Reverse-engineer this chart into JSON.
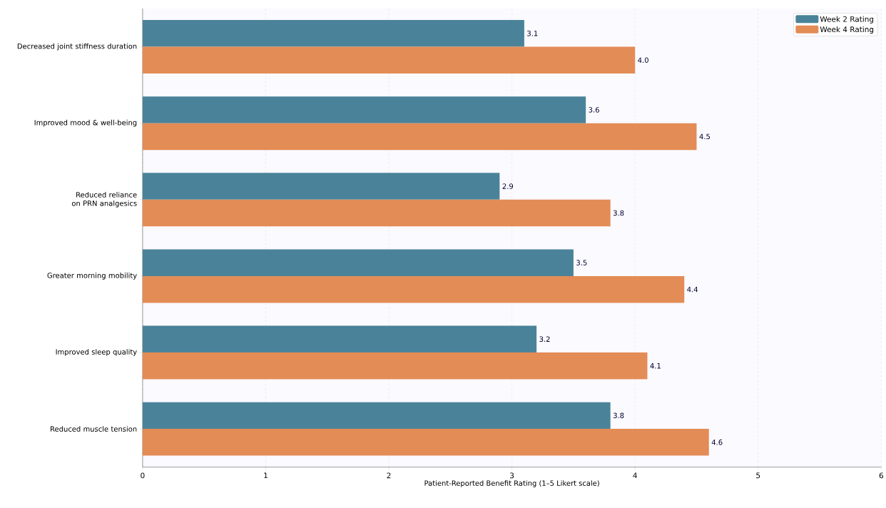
{
  "chart_data": {
    "type": "bar",
    "orientation": "horizontal",
    "xlabel": "Patient-Reported Benefit Rating (1–5 Likert scale)",
    "categories": [
      "Decreased joint stiffness duration",
      "Improved mood & well-being",
      "Reduced reliance on PRN analgesics",
      "Greater morning mobility",
      "Improved sleep quality",
      "Reduced muscle tension"
    ],
    "series": [
      {
        "name": "Week 2 Rating",
        "color": "#4a8399",
        "values": [
          3.1,
          3.6,
          2.9,
          3.5,
          3.2,
          3.8
        ],
        "value_labels": [
          "3.1",
          "3.6",
          "2.9",
          "3.5",
          "3.2",
          "3.8"
        ]
      },
      {
        "name": "Week 4 Rating",
        "color": "#e38c56",
        "values": [
          4.0,
          4.5,
          3.8,
          4.4,
          4.1,
          4.6
        ],
        "value_labels": [
          "4.0",
          "4.5",
          "3.8",
          "4.4",
          "4.1",
          "4.6"
        ]
      }
    ],
    "xlim": [
      0,
      6
    ],
    "xticks": [
      0,
      1,
      2,
      3,
      4,
      5,
      6
    ],
    "grid": "x",
    "legend": "top right"
  }
}
